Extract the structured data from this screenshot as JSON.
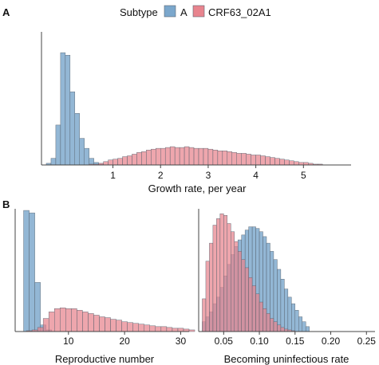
{
  "legend": {
    "title": "Subtype",
    "entries": [
      {
        "label": "A",
        "color": "#7ba7cc"
      },
      {
        "label": "CRF63_02A1",
        "color": "#e8848e"
      }
    ]
  },
  "panels": {
    "a": "A",
    "b": "B"
  },
  "colors": {
    "subtype_a": "#7ba7cc",
    "subtype_crf": "#e8848e",
    "bar_stroke": "#5a6470",
    "axis": "#444444"
  },
  "chart_data": [
    {
      "type": "histogram",
      "panel": "A",
      "xlabel": "Growth rate, per year",
      "ylabel": "",
      "xlim": [
        -0.5,
        6.0
      ],
      "xticks": [
        1,
        2,
        3,
        4,
        5
      ],
      "ymax": 160,
      "series": [
        {
          "name": "A",
          "bin_start": -0.4,
          "bin_width": 0.1,
          "values": [
            2,
            8,
            48,
            135,
            132,
            88,
            62,
            32,
            20,
            8,
            3,
            1
          ]
        },
        {
          "name": "CRF63_02A1",
          "bin_start": 0.3,
          "bin_width": 0.1,
          "values": [
            0,
            0,
            1,
            1,
            2,
            4,
            6,
            7,
            8,
            10,
            11,
            13,
            15,
            16,
            18,
            19,
            20,
            20,
            21,
            22,
            21,
            21,
            22,
            21,
            20,
            20,
            20,
            19,
            18,
            17,
            17,
            16,
            15,
            14,
            14,
            13,
            12,
            12,
            11,
            10,
            9,
            8,
            7,
            6,
            5,
            4,
            3,
            3,
            2,
            1,
            1
          ]
        }
      ]
    },
    {
      "type": "histogram",
      "panel": "B",
      "xlabel": "Reproductive number",
      "ylabel": "",
      "xlim": [
        0.5,
        31.5
      ],
      "xticks": [
        10,
        20,
        30
      ],
      "ymax": 150,
      "series": [
        {
          "name": "A",
          "bin_start": 2.0,
          "bin_width": 1.0,
          "values": [
            148,
            145,
            60,
            8,
            2
          ]
        },
        {
          "name": "CRF63_02A1",
          "bin_start": 2.5,
          "bin_width": 1.0,
          "values": [
            1,
            2,
            5,
            16,
            24,
            28,
            29,
            28,
            28,
            26,
            24,
            22,
            20,
            18,
            17,
            15,
            14,
            12,
            11,
            10,
            9,
            8,
            7,
            6,
            6,
            5,
            4,
            4,
            3,
            2
          ]
        }
      ]
    },
    {
      "type": "histogram",
      "panel": "B",
      "xlabel": "Becoming uninfectious rate",
      "ylabel": "",
      "xlim": [
        0.015,
        0.262
      ],
      "xticks": [
        0.05,
        0.1,
        0.15,
        0.2,
        0.25
      ],
      "ymax": 150,
      "series": [
        {
          "name": "A",
          "bin_start": 0.02,
          "bin_width": 0.005,
          "values": [
            12,
            18,
            24,
            34,
            42,
            54,
            68,
            82,
            94,
            104,
            112,
            118,
            124,
            128,
            128,
            126,
            122,
            116,
            108,
            98,
            88,
            76,
            64,
            52,
            42,
            34,
            26,
            18,
            12,
            6
          ]
        },
        {
          "name": "CRF63_02A1",
          "bin_start": 0.02,
          "bin_width": 0.005,
          "values": [
            40,
            86,
            108,
            130,
            138,
            144,
            142,
            132,
            122,
            110,
            98,
            88,
            78,
            66,
            56,
            46,
            36,
            28,
            22,
            16,
            12,
            8,
            5,
            3,
            2,
            1,
            0,
            0,
            0,
            0
          ]
        }
      ]
    }
  ]
}
